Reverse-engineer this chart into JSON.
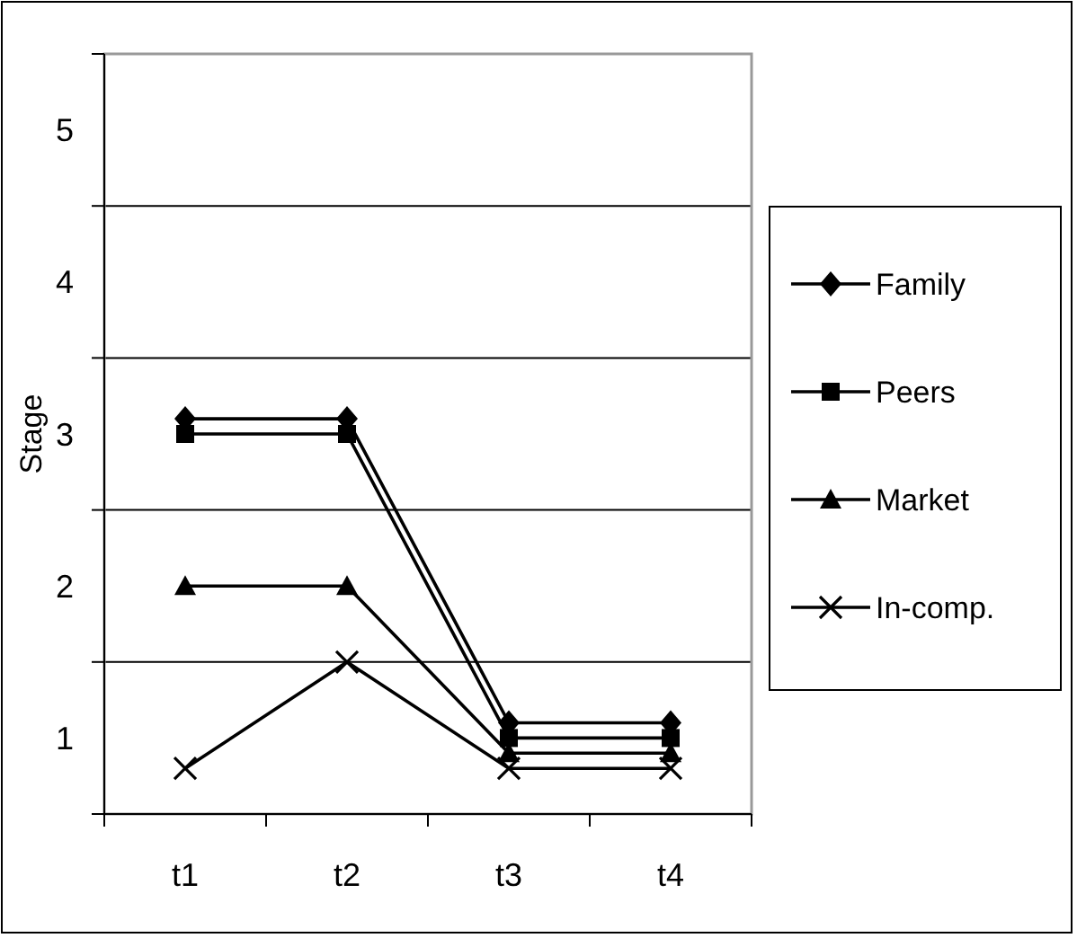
{
  "chart_data": {
    "type": "line",
    "ylabel": "Stage",
    "categories": [
      "t1",
      "t2",
      "t3",
      "t4"
    ],
    "series": [
      {
        "name": "Family",
        "color": "#000000",
        "marker": "diamond",
        "values": [
          3.1,
          3.1,
          1.1,
          1.1
        ]
      },
      {
        "name": "Peers",
        "color": "#000000",
        "marker": "square",
        "values": [
          3.0,
          3.0,
          1.0,
          1.0
        ]
      },
      {
        "name": "Market",
        "color": "#000000",
        "marker": "triangle",
        "values": [
          2.0,
          2.0,
          0.9,
          0.9
        ]
      },
      {
        "name": "In-comp.",
        "color": "#000000",
        "marker": "cross",
        "values": [
          0.8,
          1.5,
          0.8,
          0.8
        ]
      }
    ],
    "ylim": [
      0.5,
      5.5
    ],
    "yticks": [
      {
        "value": 0.5,
        "label": null
      },
      {
        "value": 1,
        "label": "1"
      },
      {
        "value": 1.5,
        "label": null
      },
      {
        "value": 2,
        "label": "2"
      },
      {
        "value": 2.5,
        "label": null
      },
      {
        "value": 3,
        "label": "3"
      },
      {
        "value": 3.5,
        "label": null
      },
      {
        "value": 4,
        "label": "4"
      },
      {
        "value": 4.5,
        "label": null
      },
      {
        "value": 5,
        "label": "5"
      },
      {
        "value": 5.5,
        "label": null
      }
    ],
    "grid": "y",
    "legend": "right"
  }
}
